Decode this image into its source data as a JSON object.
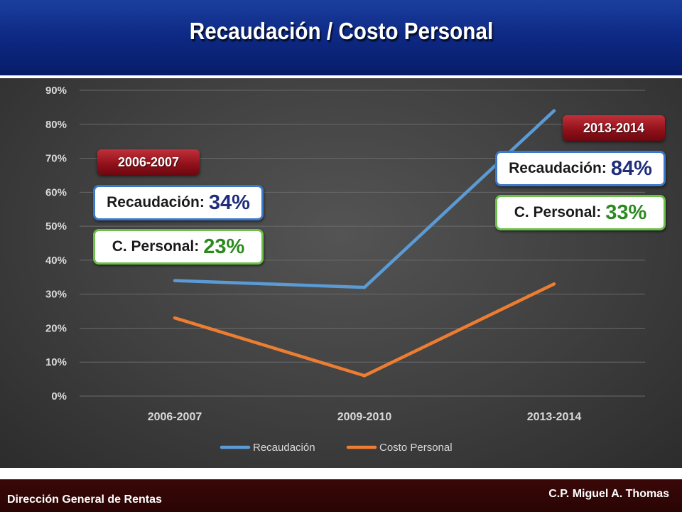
{
  "title": "Recaudación / Costo Personal",
  "chart_data": {
    "type": "line",
    "categories": [
      "2006-2007",
      "2009-2010",
      "2013-2014"
    ],
    "series": [
      {
        "name": "Recaudación",
        "values": [
          34,
          32,
          84
        ],
        "color": "#5b9bd5"
      },
      {
        "name": "Costo Personal",
        "values": [
          23,
          6,
          33
        ],
        "color": "#ed7d31"
      }
    ],
    "y_ticks": [
      "0%",
      "10%",
      "20%",
      "30%",
      "40%",
      "50%",
      "60%",
      "70%",
      "80%",
      "90%"
    ],
    "ylim": [
      0,
      90
    ],
    "legend_position": "bottom",
    "grid": true
  },
  "annotations": {
    "left": {
      "year": "2006-2007",
      "recaudacion_label": "Recaudación:",
      "recaudacion_value": "34%",
      "personal_label": "C. Personal:",
      "personal_value": "23%"
    },
    "right": {
      "year": "2013-2014",
      "recaudacion_label": "Recaudación:",
      "recaudacion_value": "84%",
      "personal_label": "C. Personal:",
      "personal_value": "33%"
    }
  },
  "footer": {
    "left": "Dirección General de Rentas",
    "right": "C.P. Miguel A. Thomas"
  }
}
